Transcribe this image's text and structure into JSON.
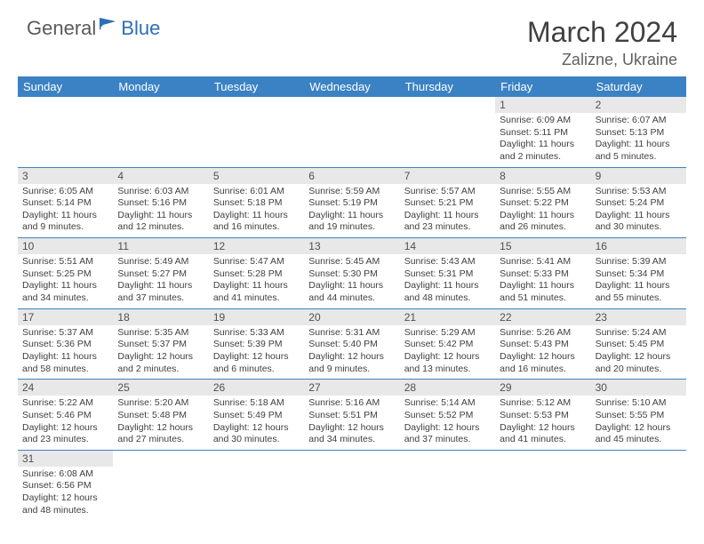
{
  "logo": {
    "text1": "General",
    "text2": "Blue"
  },
  "title": "March 2024",
  "location": "Zalizne, Ukraine",
  "colors": {
    "header_bg": "#3b82c4",
    "header_text": "#ffffff",
    "date_bg": "#e8e8e8",
    "text": "#404040",
    "logo_gray": "#5a5a5a",
    "logo_blue": "#2d6fb7",
    "border": "#3b82c4"
  },
  "day_names": [
    "Sunday",
    "Monday",
    "Tuesday",
    "Wednesday",
    "Thursday",
    "Friday",
    "Saturday"
  ],
  "weeks": [
    [
      null,
      null,
      null,
      null,
      null,
      {
        "d": "1",
        "sr": "6:09 AM",
        "ss": "5:11 PM",
        "dl": "11 hours and 2 minutes."
      },
      {
        "d": "2",
        "sr": "6:07 AM",
        "ss": "5:13 PM",
        "dl": "11 hours and 5 minutes."
      }
    ],
    [
      {
        "d": "3",
        "sr": "6:05 AM",
        "ss": "5:14 PM",
        "dl": "11 hours and 9 minutes."
      },
      {
        "d": "4",
        "sr": "6:03 AM",
        "ss": "5:16 PM",
        "dl": "11 hours and 12 minutes."
      },
      {
        "d": "5",
        "sr": "6:01 AM",
        "ss": "5:18 PM",
        "dl": "11 hours and 16 minutes."
      },
      {
        "d": "6",
        "sr": "5:59 AM",
        "ss": "5:19 PM",
        "dl": "11 hours and 19 minutes."
      },
      {
        "d": "7",
        "sr": "5:57 AM",
        "ss": "5:21 PM",
        "dl": "11 hours and 23 minutes."
      },
      {
        "d": "8",
        "sr": "5:55 AM",
        "ss": "5:22 PM",
        "dl": "11 hours and 26 minutes."
      },
      {
        "d": "9",
        "sr": "5:53 AM",
        "ss": "5:24 PM",
        "dl": "11 hours and 30 minutes."
      }
    ],
    [
      {
        "d": "10",
        "sr": "5:51 AM",
        "ss": "5:25 PM",
        "dl": "11 hours and 34 minutes."
      },
      {
        "d": "11",
        "sr": "5:49 AM",
        "ss": "5:27 PM",
        "dl": "11 hours and 37 minutes."
      },
      {
        "d": "12",
        "sr": "5:47 AM",
        "ss": "5:28 PM",
        "dl": "11 hours and 41 minutes."
      },
      {
        "d": "13",
        "sr": "5:45 AM",
        "ss": "5:30 PM",
        "dl": "11 hours and 44 minutes."
      },
      {
        "d": "14",
        "sr": "5:43 AM",
        "ss": "5:31 PM",
        "dl": "11 hours and 48 minutes."
      },
      {
        "d": "15",
        "sr": "5:41 AM",
        "ss": "5:33 PM",
        "dl": "11 hours and 51 minutes."
      },
      {
        "d": "16",
        "sr": "5:39 AM",
        "ss": "5:34 PM",
        "dl": "11 hours and 55 minutes."
      }
    ],
    [
      {
        "d": "17",
        "sr": "5:37 AM",
        "ss": "5:36 PM",
        "dl": "11 hours and 58 minutes."
      },
      {
        "d": "18",
        "sr": "5:35 AM",
        "ss": "5:37 PM",
        "dl": "12 hours and 2 minutes."
      },
      {
        "d": "19",
        "sr": "5:33 AM",
        "ss": "5:39 PM",
        "dl": "12 hours and 6 minutes."
      },
      {
        "d": "20",
        "sr": "5:31 AM",
        "ss": "5:40 PM",
        "dl": "12 hours and 9 minutes."
      },
      {
        "d": "21",
        "sr": "5:29 AM",
        "ss": "5:42 PM",
        "dl": "12 hours and 13 minutes."
      },
      {
        "d": "22",
        "sr": "5:26 AM",
        "ss": "5:43 PM",
        "dl": "12 hours and 16 minutes."
      },
      {
        "d": "23",
        "sr": "5:24 AM",
        "ss": "5:45 PM",
        "dl": "12 hours and 20 minutes."
      }
    ],
    [
      {
        "d": "24",
        "sr": "5:22 AM",
        "ss": "5:46 PM",
        "dl": "12 hours and 23 minutes."
      },
      {
        "d": "25",
        "sr": "5:20 AM",
        "ss": "5:48 PM",
        "dl": "12 hours and 27 minutes."
      },
      {
        "d": "26",
        "sr": "5:18 AM",
        "ss": "5:49 PM",
        "dl": "12 hours and 30 minutes."
      },
      {
        "d": "27",
        "sr": "5:16 AM",
        "ss": "5:51 PM",
        "dl": "12 hours and 34 minutes."
      },
      {
        "d": "28",
        "sr": "5:14 AM",
        "ss": "5:52 PM",
        "dl": "12 hours and 37 minutes."
      },
      {
        "d": "29",
        "sr": "5:12 AM",
        "ss": "5:53 PM",
        "dl": "12 hours and 41 minutes."
      },
      {
        "d": "30",
        "sr": "5:10 AM",
        "ss": "5:55 PM",
        "dl": "12 hours and 45 minutes."
      }
    ],
    [
      {
        "d": "31",
        "sr": "6:08 AM",
        "ss": "6:56 PM",
        "dl": "12 hours and 48 minutes."
      },
      null,
      null,
      null,
      null,
      null,
      null
    ]
  ],
  "labels": {
    "sunrise": "Sunrise: ",
    "sunset": "Sunset: ",
    "daylight": "Daylight: "
  }
}
